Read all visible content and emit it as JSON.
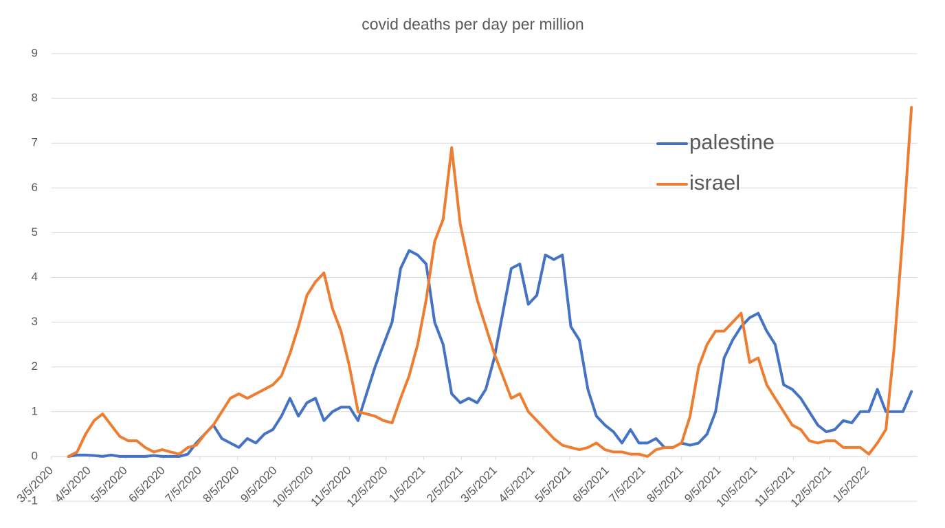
{
  "chart_data": {
    "type": "line",
    "title": "covid deaths per day per million",
    "x": [
      "3/19/2020",
      "3/26/2020",
      "4/2/2020",
      "4/9/2020",
      "4/16/2020",
      "4/23/2020",
      "4/30/2020",
      "5/7/2020",
      "5/14/2020",
      "5/21/2020",
      "5/28/2020",
      "6/4/2020",
      "6/11/2020",
      "6/18/2020",
      "6/25/2020",
      "7/2/2020",
      "7/9/2020",
      "7/16/2020",
      "7/23/2020",
      "7/30/2020",
      "8/6/2020",
      "8/13/2020",
      "8/20/2020",
      "8/27/2020",
      "9/3/2020",
      "9/10/2020",
      "9/17/2020",
      "9/24/2020",
      "10/1/2020",
      "10/8/2020",
      "10/15/2020",
      "10/22/2020",
      "10/29/2020",
      "11/5/2020",
      "11/12/2020",
      "11/19/2020",
      "11/26/2020",
      "12/3/2020",
      "12/10/2020",
      "12/17/2020",
      "12/24/2020",
      "12/31/2020",
      "1/7/2021",
      "1/14/2021",
      "1/21/2021",
      "1/28/2021",
      "2/4/2021",
      "2/11/2021",
      "2/18/2021",
      "2/25/2021",
      "3/4/2021",
      "3/11/2021",
      "3/18/2021",
      "3/25/2021",
      "4/1/2021",
      "4/8/2021",
      "4/15/2021",
      "4/22/2021",
      "4/29/2021",
      "5/6/2021",
      "5/13/2021",
      "5/20/2021",
      "5/27/2021",
      "6/3/2021",
      "6/10/2021",
      "6/17/2021",
      "6/24/2021",
      "7/1/2021",
      "7/8/2021",
      "7/15/2021",
      "7/22/2021",
      "7/29/2021",
      "8/5/2021",
      "8/12/2021",
      "8/19/2021",
      "8/26/2021",
      "9/2/2021",
      "9/9/2021",
      "9/16/2021",
      "9/23/2021",
      "9/30/2021",
      "10/7/2021",
      "10/14/2021",
      "10/21/2021",
      "10/28/2021",
      "11/4/2021",
      "11/11/2021",
      "11/18/2021",
      "11/25/2021",
      "12/2/2021",
      "12/9/2021",
      "12/16/2021",
      "12/23/2021",
      "12/30/2021",
      "1/6/2022",
      "1/13/2022",
      "1/20/2022",
      "1/27/2022",
      "2/3/2022",
      "2/10/2022"
    ],
    "series": [
      {
        "name": "palestine",
        "color": "#4472c4",
        "values": [
          0,
          0.03,
          0.03,
          0.02,
          0,
          0.03,
          0,
          0,
          0,
          0,
          0.02,
          0,
          0,
          0,
          0.05,
          0.3,
          0.5,
          0.7,
          0.4,
          0.3,
          0.2,
          0.4,
          0.3,
          0.5,
          0.6,
          0.9,
          1.3,
          0.9,
          1.2,
          1.3,
          0.8,
          1.0,
          1.1,
          1.1,
          0.8,
          1.4,
          2.0,
          2.5,
          3.0,
          4.2,
          4.6,
          4.5,
          4.3,
          3.0,
          2.5,
          1.4,
          1.2,
          1.3,
          1.2,
          1.5,
          2.2,
          3.2,
          4.2,
          4.3,
          3.4,
          3.6,
          4.5,
          4.4,
          4.5,
          2.9,
          2.6,
          1.5,
          0.9,
          0.7,
          0.55,
          0.3,
          0.6,
          0.3,
          0.3,
          0.4,
          0.2,
          0.2,
          0.3,
          0.25,
          0.3,
          0.5,
          1.0,
          2.2,
          2.6,
          2.9,
          3.1,
          3.2,
          2.8,
          2.5,
          1.6,
          1.5,
          1.3,
          1.0,
          0.7,
          0.55,
          0.6,
          0.8,
          0.75,
          1.0,
          1.0,
          1.5,
          1.0,
          1.0,
          1.0,
          1.45
        ]
      },
      {
        "name": "israel",
        "color": "#ed7d31",
        "values": [
          0,
          0.1,
          0.5,
          0.8,
          0.95,
          0.7,
          0.45,
          0.35,
          0.35,
          0.2,
          0.1,
          0.15,
          0.1,
          0.05,
          0.2,
          0.25,
          0.5,
          0.7,
          1.0,
          1.3,
          1.4,
          1.3,
          1.4,
          1.5,
          1.6,
          1.8,
          2.3,
          2.9,
          3.6,
          3.9,
          4.1,
          3.3,
          2.8,
          2.0,
          1.0,
          0.95,
          0.9,
          0.8,
          0.75,
          1.3,
          1.8,
          2.5,
          3.5,
          4.8,
          5.3,
          6.9,
          5.2,
          4.3,
          3.5,
          2.9,
          2.3,
          1.8,
          1.3,
          1.4,
          1.0,
          0.8,
          0.6,
          0.4,
          0.25,
          0.2,
          0.15,
          0.2,
          0.3,
          0.15,
          0.1,
          0.1,
          0.05,
          0.05,
          0,
          0.15,
          0.2,
          0.2,
          0.3,
          0.9,
          2.0,
          2.5,
          2.8,
          2.8,
          3.0,
          3.2,
          2.1,
          2.2,
          1.6,
          1.3,
          1.0,
          0.7,
          0.6,
          0.35,
          0.3,
          0.35,
          0.35,
          0.2,
          0.2,
          0.2,
          0.05,
          0.3,
          0.6,
          2.5,
          5.0,
          7.8
        ]
      }
    ],
    "xlim": [
      "3/5/2020",
      "2/15/2022"
    ],
    "xticks": [
      "3/5/2020",
      "4/5/2020",
      "5/5/2020",
      "6/5/2020",
      "7/5/2020",
      "8/5/2020",
      "9/5/2020",
      "10/5/2020",
      "11/5/2020",
      "12/5/2020",
      "1/5/2021",
      "2/5/2021",
      "3/5/2021",
      "4/5/2021",
      "5/5/2021",
      "6/5/2021",
      "7/5/2021",
      "8/5/2021",
      "9/5/2021",
      "10/5/2021",
      "11/5/2021",
      "12/5/2021",
      "1/5/2022"
    ],
    "ylim": [
      -1,
      9
    ],
    "yticks": [
      -1,
      0,
      1,
      2,
      3,
      4,
      5,
      6,
      7,
      8,
      9
    ],
    "grid": true,
    "legend_position": "upper right"
  }
}
